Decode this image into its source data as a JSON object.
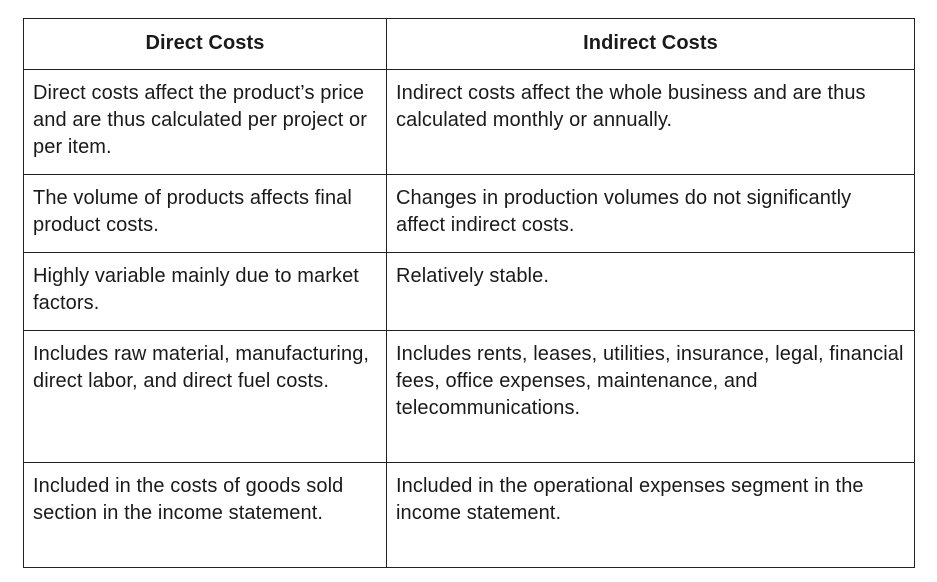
{
  "table": {
    "headers": [
      "Direct Costs",
      "Indirect Costs"
    ],
    "rows": [
      {
        "direct": "Direct costs affect the product’s price and are thus calculated per project or per item.",
        "indirect": "Indirect costs affect the whole business and are thus calculated monthly or annually."
      },
      {
        "direct": "The volume of products affects final product costs.",
        "indirect": "Changes in production volumes do not significantly affect indirect costs."
      },
      {
        "direct": "Highly variable mainly due to market factors.",
        "indirect": "Relatively stable."
      },
      {
        "direct": "Includes raw material, manufacturing, direct labor, and direct fuel costs.",
        "indirect": "Includes rents, leases, utilities, insurance, legal, financial fees, office expenses, maintenance, and telecommunications."
      },
      {
        "direct": "Included in the costs of goods sold section in the income statement.",
        "indirect": "Included in the operational expenses segment in the income statement."
      }
    ]
  }
}
